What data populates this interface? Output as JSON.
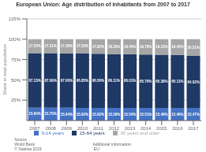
{
  "chart_data": {
    "type": "bar",
    "title": "European Union: Age distribution of inhabitants from 2007 to 2017",
    "categories": [
      "2007",
      "2008",
      "2009",
      "2010",
      "2011",
      "2012",
      "2013",
      "2014",
      "2015",
      "2016",
      "2017"
    ],
    "series": [
      {
        "name": "0-14 years",
        "color": "#4472C4",
        "values": [
          15.84,
          15.7,
          15.64,
          15.62,
          15.62,
          15.59,
          15.54,
          15.51,
          15.49,
          15.46,
          15.47
        ],
        "value_labels": [
          "15.84%",
          "15.70%",
          "15.64%",
          "15.62%",
          "15.62%",
          "15.59%",
          "15.54%",
          "15.51%",
          "15.49%",
          "15.46%",
          "15.47%"
        ]
      },
      {
        "name": "15-64 years",
        "color": "#1F3864",
        "values": [
          67.13,
          67.09,
          67.0,
          66.85,
          66.56,
          66.11,
          66.01,
          65.7,
          65.38,
          65.11,
          64.02
        ],
        "value_labels": [
          "67.13%",
          "67.09%",
          "67.00%",
          "66.85%",
          "66.56%",
          "66.11%",
          "66.01%",
          "65.70%",
          "65.38%",
          "65.11%",
          "64.02%"
        ]
      },
      {
        "name": "65 years and older",
        "color": "#A6A6A6",
        "values": [
          17.03,
          17.21,
          17.36,
          17.53,
          17.82,
          18.3,
          18.45,
          18.79,
          19.13,
          19.43,
          20.51
        ],
        "value_labels": [
          "17.03%",
          "17.21%",
          "17.36%",
          "17.53%",
          "17.82%",
          "18.30%",
          "18.45%",
          "18.79%",
          "19.13%",
          "19.43%",
          "20.51%"
        ]
      }
    ],
    "ylabel": "Share in total population",
    "ylim": [
      0,
      125
    ],
    "yticks": [
      {
        "value": 25,
        "label": "25%"
      },
      {
        "value": 50,
        "label": "50%"
      },
      {
        "value": 75,
        "label": "75%"
      },
      {
        "value": 100,
        "label": "100%"
      },
      {
        "value": 125,
        "label": "125%"
      }
    ],
    "grid": true,
    "stacked": true,
    "data_labels": true,
    "legend": "bottom",
    "annotations": [
      "Source\nWorld Bank\n© Statista 2019",
      "Additional information:\n EU"
    ]
  }
}
